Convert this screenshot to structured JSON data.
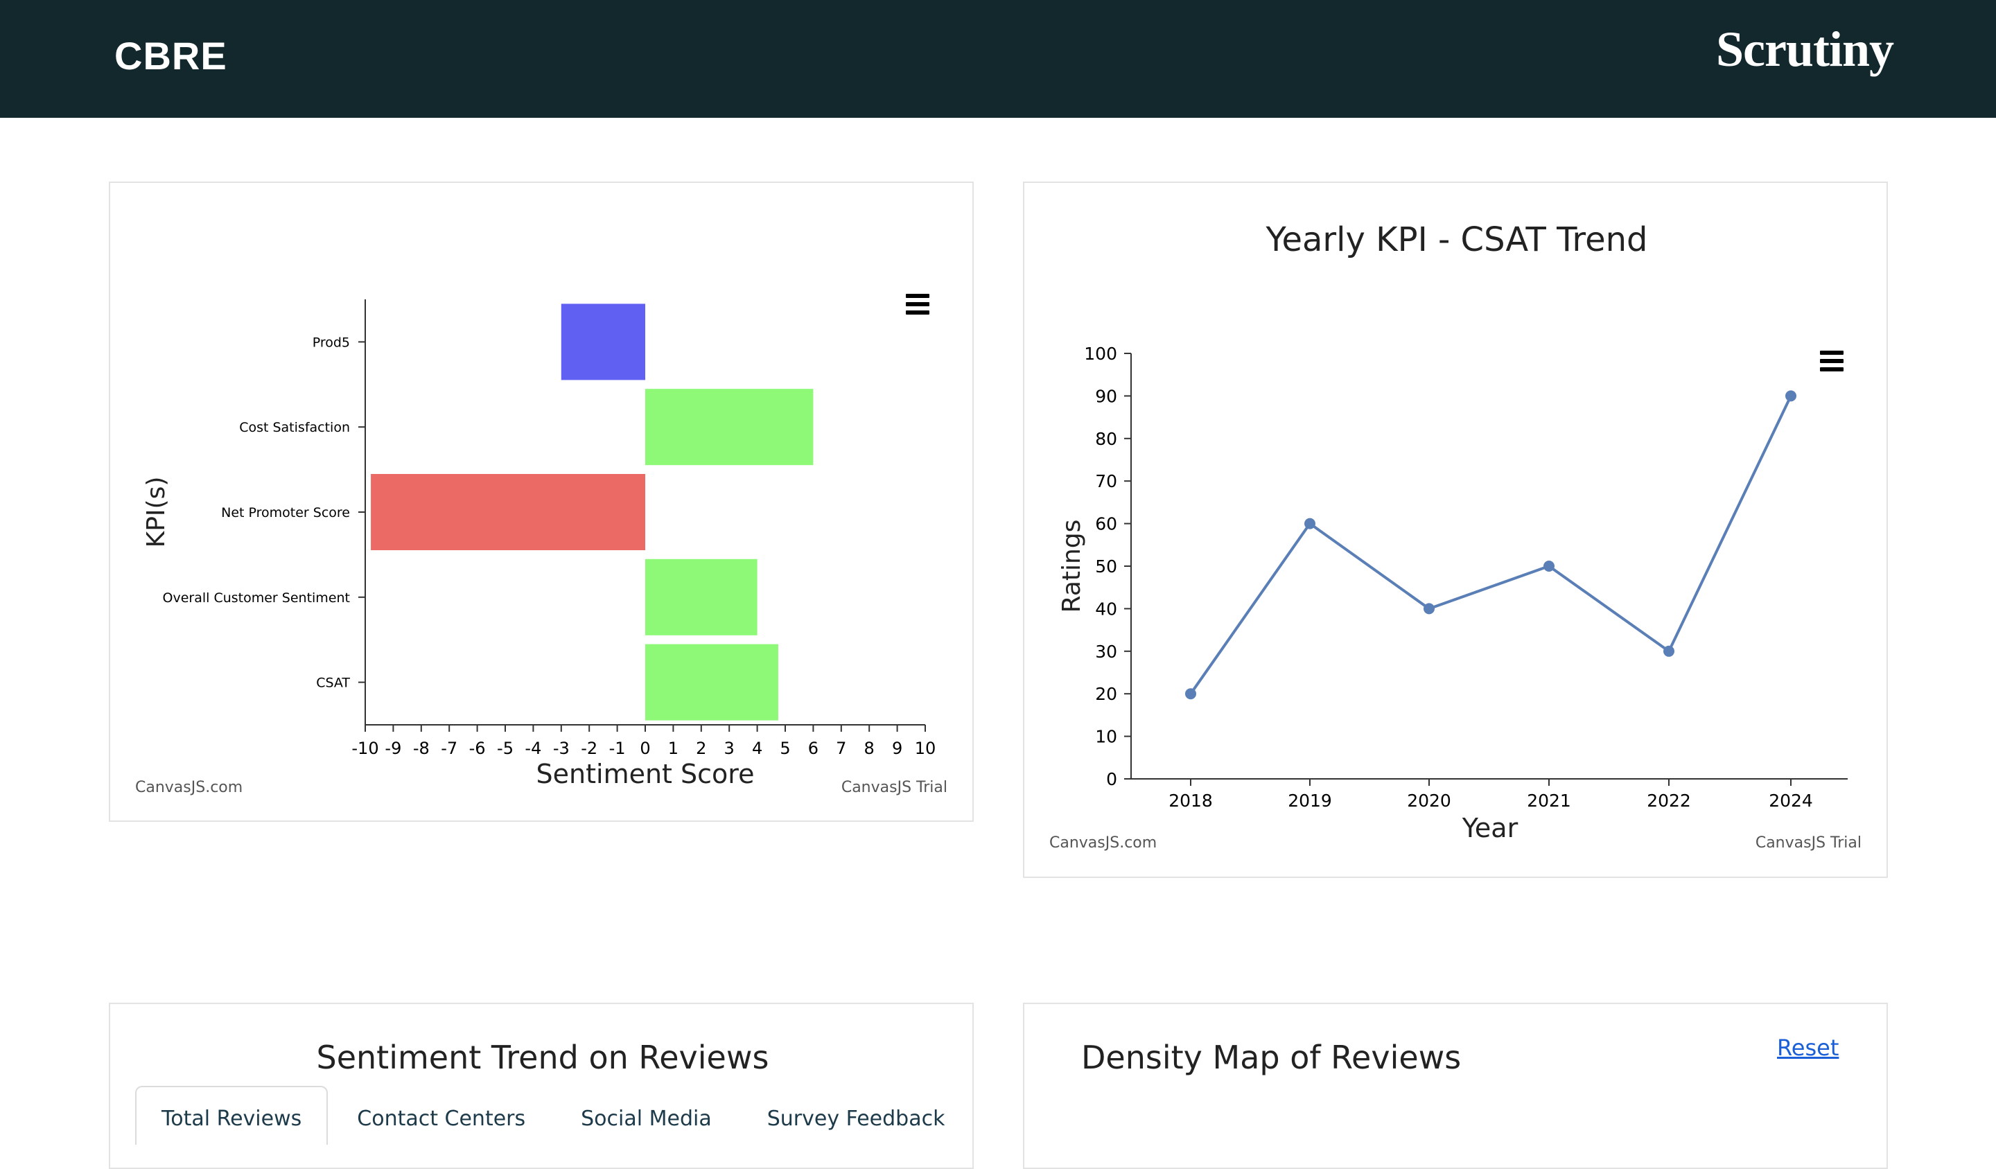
{
  "header": {
    "logo_left": "CBRE",
    "logo_right": "Scrutiny",
    "background": "#12282c"
  },
  "sentiment_chart": {
    "credit_left": "CanvasJS.com",
    "credit_right": "CanvasJS Trial",
    "menu_icon": "hamburger-menu-icon"
  },
  "csat_chart": {
    "credit_left": "CanvasJS.com",
    "credit_right": "CanvasJS Trial",
    "menu_icon": "hamburger-menu-icon"
  },
  "chart_data": [
    {
      "type": "bar",
      "orientation": "horizontal",
      "title": "",
      "xlabel": "Sentiment Score",
      "ylabel": "KPI(s)",
      "xlim": [
        -10,
        10
      ],
      "x_ticks": [
        "-10",
        "-9",
        "-8",
        "-7",
        "-6",
        "-5",
        "-4",
        "-3",
        "-2",
        "-1",
        "0",
        "1",
        "2",
        "3",
        "4",
        "5",
        "6",
        "7",
        "8",
        "9",
        "10"
      ],
      "categories": [
        "Prod5",
        "Cost Satisfaction",
        "Net Promoter Score",
        "Overall Customer Sentiment",
        "CSAT"
      ],
      "values": [
        -3,
        6,
        -9.8,
        4,
        4.75
      ],
      "colors": [
        "#6060f2",
        "#8ef877",
        "#eb6a66",
        "#8ef877",
        "#8ef877"
      ],
      "grid": false,
      "legend": "none"
    },
    {
      "type": "line",
      "title": "Yearly KPI - CSAT Trend",
      "xlabel": "Year",
      "ylabel": "Ratings",
      "categories": [
        "2018",
        "2019",
        "2020",
        "2021",
        "2022",
        "2024"
      ],
      "values": [
        20,
        60,
        40,
        50,
        30,
        90
      ],
      "ylim": [
        0,
        100
      ],
      "y_ticks": [
        "0",
        "10",
        "20",
        "30",
        "40",
        "50",
        "60",
        "70",
        "80",
        "90",
        "100"
      ],
      "color": "#5a7fb6",
      "grid": false,
      "legend": "none"
    }
  ],
  "sentiment_trend": {
    "title": "Sentiment Trend on Reviews",
    "tabs": [
      "Total Reviews",
      "Contact Centers",
      "Social Media",
      "Survey Feedback"
    ],
    "active_tab": "Total Reviews"
  },
  "density_map": {
    "title": "Density Map of Reviews",
    "reset_label": "Reset"
  }
}
